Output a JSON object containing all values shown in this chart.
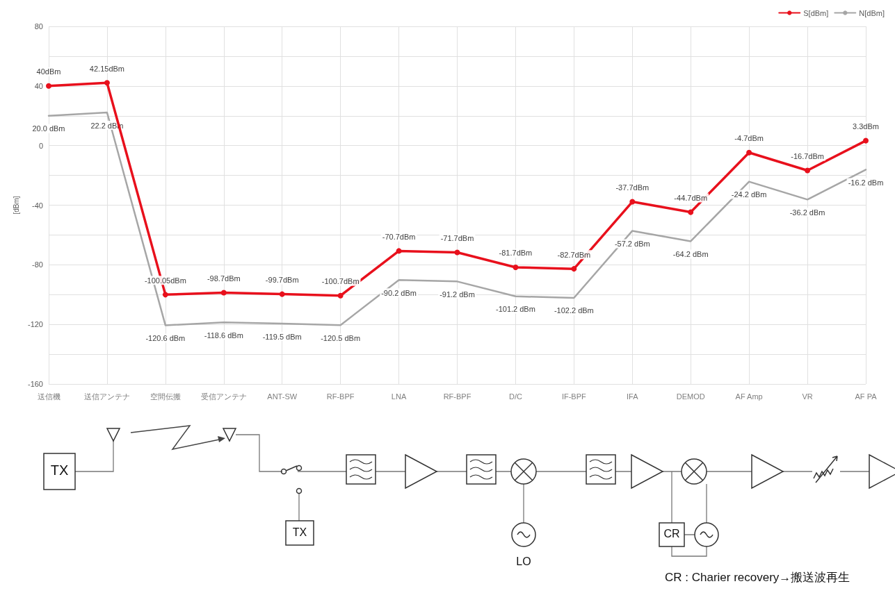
{
  "chart_data": {
    "type": "line",
    "categories": [
      "送信機",
      "送信アンテナ",
      "空間伝搬",
      "受信アンテナ",
      "ANT-SW",
      "RF-BPF",
      "LNA",
      "RF-BPF",
      "D/C",
      "IF-BPF",
      "IFA",
      "DEMOD",
      "AF Amp",
      "VR",
      "AF PA"
    ],
    "ylabel": "[dBm]",
    "ylim": [
      -160,
      80
    ],
    "yticks": [
      -160,
      {
        "value": -140,
        "label": null
      },
      -120,
      {
        "value": -100,
        "label": null
      },
      -80,
      {
        "value": -60,
        "label": null
      },
      -40,
      {
        "value": -20,
        "label": null
      },
      0,
      {
        "value": 20,
        "label": null
      },
      40,
      {
        "value": 60,
        "label": null
      },
      80
    ],
    "grid": true,
    "legend": "top right",
    "series": [
      {
        "name": "S[dBm]",
        "color": "#e8101c",
        "marker": "circle",
        "values": [
          40,
          42.15,
          -100.05,
          -98.7,
          -99.7,
          -100.7,
          -70.7,
          -71.7,
          -81.7,
          -82.7,
          -37.7,
          -44.7,
          -4.7,
          -16.7,
          3.3
        ],
        "value_labels": [
          "40dBm",
          "42.15dBm",
          "-100.05dBm",
          "-98.7dBm",
          "-99.7dBm",
          "-100.7dBm",
          "-70.7dBm",
          "-71.7dBm",
          "-81.7dBm",
          "-82.7dBm",
          "-37.7dBm",
          "-44.7dBm",
          "-4.7dBm",
          "-16.7dBm",
          "3.3dBm"
        ]
      },
      {
        "name": "N[dBm]",
        "color": "#a6a6a6",
        "marker": "none",
        "values": [
          20.0,
          22.2,
          -120.6,
          -118.6,
          -119.5,
          -120.5,
          -90.2,
          -91.2,
          -101.2,
          -102.2,
          -57.2,
          -64.2,
          -24.2,
          -36.2,
          -16.2
        ],
        "value_labels": [
          "20.0 dBm",
          "22.2 dBm",
          "-120.6 dBm",
          "-118.6 dBm",
          "-119.5 dBm",
          "-120.5 dBm",
          "-90.2 dBm",
          "-91.2 dBm",
          "-101.2 dBm",
          "-102.2 dBm",
          "-57.2 dBm",
          "-64.2 dBm",
          "-24.2 dBm",
          "-36.2 dBm",
          "-16.2 dBm"
        ]
      }
    ],
    "annotations": [
      "TX",
      "TX",
      "LO",
      "CR",
      "CR : Charier recovery→搬送波再生"
    ]
  }
}
